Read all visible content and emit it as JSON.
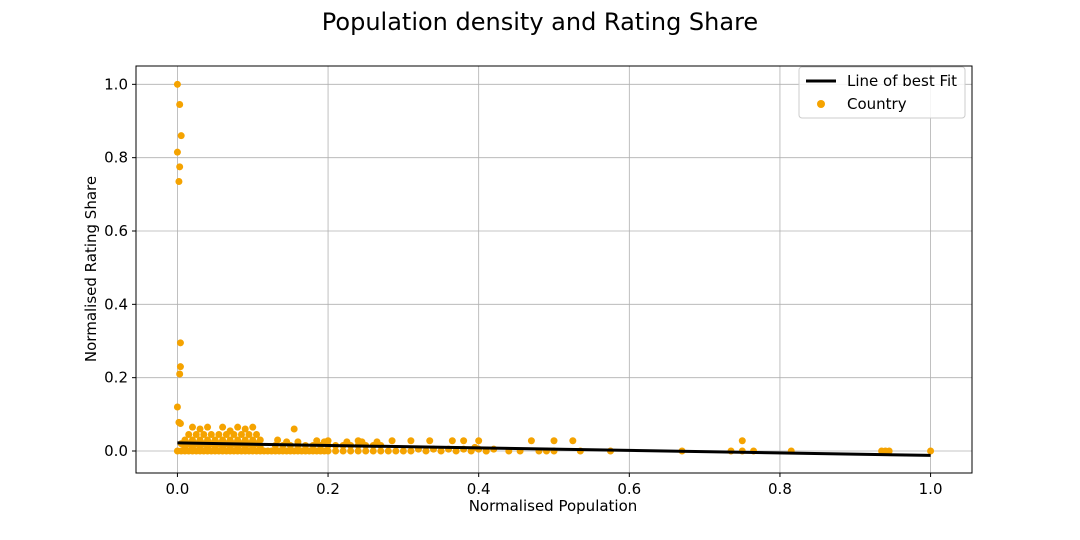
{
  "chart_data": {
    "type": "scatter",
    "title": "Population density and Rating Share",
    "xlabel": "Normalised Population",
    "ylabel": "Normalised Rating Share",
    "xlim": [
      -0.055,
      1.055
    ],
    "ylim": [
      -0.06,
      1.05
    ],
    "xticks": [
      "0.0",
      "0.2",
      "0.4",
      "0.6",
      "0.8",
      "1.0"
    ],
    "yticks": [
      "0.0",
      "0.2",
      "0.4",
      "0.6",
      "0.8",
      "1.0"
    ],
    "grid": true,
    "legend_position": "top-right",
    "colors": {
      "points": "#f5a300",
      "line": "#000000",
      "grid": "#b0b0b0"
    },
    "series": [
      {
        "name": "Line of best Fit",
        "kind": "line",
        "x": [
          0.0,
          1.0
        ],
        "y": [
          0.022,
          -0.012
        ]
      },
      {
        "name": "Country",
        "kind": "scatter",
        "x": [
          0.0,
          0.003,
          0.005,
          0.0,
          0.003,
          0.002,
          0.004,
          0.004,
          0.003,
          0.0,
          0.002,
          0.004,
          0.0,
          0.005,
          0.01,
          0.015,
          0.02,
          0.025,
          0.03,
          0.035,
          0.04,
          0.045,
          0.05,
          0.055,
          0.06,
          0.065,
          0.07,
          0.075,
          0.08,
          0.085,
          0.09,
          0.095,
          0.1,
          0.105,
          0.11,
          0.115,
          0.01,
          0.02,
          0.03,
          0.04,
          0.05,
          0.06,
          0.07,
          0.08,
          0.09,
          0.1,
          0.11,
          0.005,
          0.015,
          0.025,
          0.035,
          0.045,
          0.055,
          0.065,
          0.075,
          0.085,
          0.095,
          0.105,
          0.01,
          0.02,
          0.03,
          0.04,
          0.05,
          0.06,
          0.07,
          0.08,
          0.09,
          0.1,
          0.11,
          0.015,
          0.025,
          0.035,
          0.045,
          0.055,
          0.065,
          0.075,
          0.085,
          0.095,
          0.105,
          0.02,
          0.04,
          0.06,
          0.08,
          0.1,
          0.03,
          0.07,
          0.09,
          0.12,
          0.125,
          0.13,
          0.135,
          0.14,
          0.145,
          0.15,
          0.155,
          0.16,
          0.165,
          0.17,
          0.175,
          0.18,
          0.185,
          0.19,
          0.195,
          0.2,
          0.21,
          0.22,
          0.23,
          0.24,
          0.25,
          0.26,
          0.27,
          0.28,
          0.29,
          0.3,
          0.13,
          0.14,
          0.15,
          0.16,
          0.17,
          0.18,
          0.19,
          0.2,
          0.21,
          0.22,
          0.23,
          0.24,
          0.25,
          0.26,
          0.27,
          0.133,
          0.145,
          0.155,
          0.16,
          0.185,
          0.195,
          0.2,
          0.225,
          0.24,
          0.245,
          0.265,
          0.285,
          0.31,
          0.32,
          0.33,
          0.34,
          0.35,
          0.36,
          0.37,
          0.38,
          0.39,
          0.4,
          0.41,
          0.42,
          0.31,
          0.335,
          0.365,
          0.38,
          0.4,
          0.395,
          0.41,
          0.44,
          0.455,
          0.47,
          0.48,
          0.5,
          0.5,
          0.49,
          0.525,
          0.535,
          0.575,
          0.67,
          0.735,
          0.75,
          0.75,
          0.765,
          0.815,
          0.935,
          0.94,
          0.945,
          1.0
        ],
        "y": [
          1.0,
          0.945,
          0.86,
          0.815,
          0.775,
          0.735,
          0.295,
          0.23,
          0.21,
          0.12,
          0.078,
          0.075,
          0.0,
          0.0,
          0.0,
          0.0,
          0.0,
          0.0,
          0.0,
          0.0,
          0.0,
          0.0,
          0.0,
          0.0,
          0.0,
          0.0,
          0.0,
          0.0,
          0.0,
          0.0,
          0.0,
          0.0,
          0.0,
          0.0,
          0.0,
          0.0,
          0.01,
          0.01,
          0.01,
          0.01,
          0.01,
          0.01,
          0.01,
          0.01,
          0.01,
          0.01,
          0.01,
          0.02,
          0.02,
          0.02,
          0.02,
          0.02,
          0.02,
          0.02,
          0.02,
          0.02,
          0.02,
          0.02,
          0.03,
          0.03,
          0.03,
          0.03,
          0.03,
          0.03,
          0.03,
          0.03,
          0.03,
          0.03,
          0.03,
          0.045,
          0.045,
          0.045,
          0.045,
          0.045,
          0.045,
          0.045,
          0.045,
          0.045,
          0.045,
          0.065,
          0.065,
          0.065,
          0.065,
          0.065,
          0.06,
          0.055,
          0.06,
          0.0,
          0.0,
          0.0,
          0.0,
          0.0,
          0.0,
          0.0,
          0.0,
          0.0,
          0.0,
          0.0,
          0.0,
          0.0,
          0.0,
          0.0,
          0.0,
          0.0,
          0.0,
          0.0,
          0.0,
          0.0,
          0.0,
          0.0,
          0.0,
          0.0,
          0.0,
          0.0,
          0.015,
          0.015,
          0.015,
          0.015,
          0.015,
          0.015,
          0.015,
          0.015,
          0.015,
          0.015,
          0.015,
          0.015,
          0.015,
          0.015,
          0.015,
          0.03,
          0.025,
          0.06,
          0.025,
          0.028,
          0.025,
          0.028,
          0.025,
          0.028,
          0.025,
          0.025,
          0.028,
          0.0,
          0.005,
          0.0,
          0.005,
          0.0,
          0.005,
          0.0,
          0.005,
          0.0,
          0.005,
          0.0,
          0.005,
          0.028,
          0.028,
          0.028,
          0.028,
          0.028,
          0.01,
          0.0,
          0.0,
          0.0,
          0.028,
          0.0,
          0.028,
          0.0,
          0.0,
          0.028,
          0.0,
          0.0,
          0.0,
          0.0,
          0.028,
          0.0,
          0.0,
          0.0,
          0.0,
          0.0,
          0.0,
          0.0
        ]
      }
    ]
  }
}
